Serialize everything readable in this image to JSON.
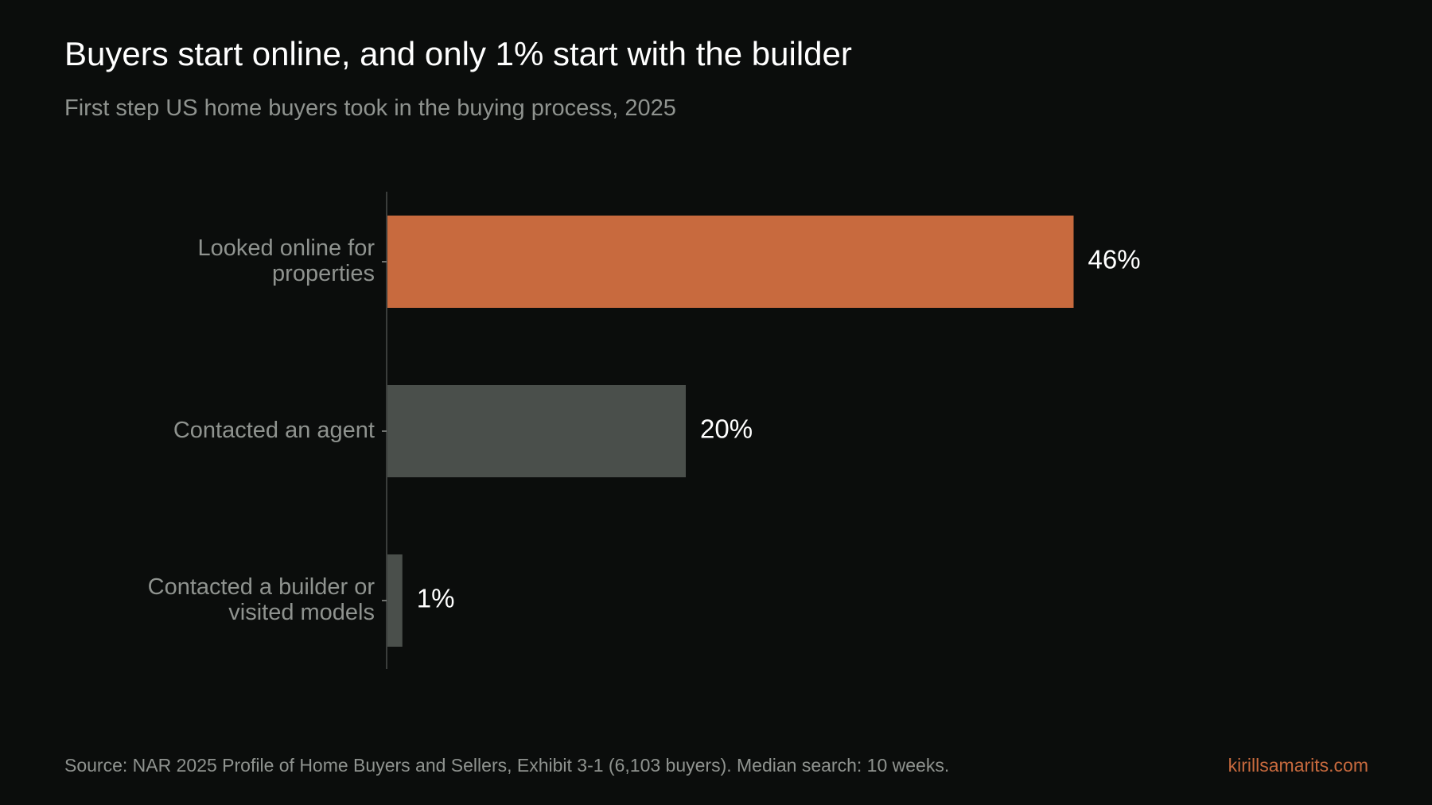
{
  "header": {
    "title": "Buyers start online, and only 1% start with the builder",
    "subtitle": "First step US home buyers took in the buying process, 2025"
  },
  "footer": {
    "source": "Source: NAR 2025 Profile of Home Buyers and Sellers, Exhibit 3-1 (6,103 buyers). Median search: 10 weeks.",
    "brand": "kirillsamarits.com"
  },
  "colors": {
    "background": "#0b0d0c",
    "highlight_bar": "#c86a3e",
    "muted_bar": "#4a4f4b",
    "label_text": "#8f938f",
    "value_text": "#ffffff",
    "axis": "#3a3d3b"
  },
  "chart_data": {
    "type": "bar",
    "orientation": "horizontal",
    "categories": [
      [
        "Looked online for",
        "properties"
      ],
      [
        "Contacted an agent"
      ],
      [
        "Contacted a builder or",
        "visited models"
      ]
    ],
    "values": [
      46,
      20,
      1
    ],
    "value_labels": [
      "46%",
      "20%",
      "1%"
    ],
    "highlight_index": 0,
    "xlim": [
      0,
      50
    ],
    "grid": false,
    "legend": "none"
  }
}
